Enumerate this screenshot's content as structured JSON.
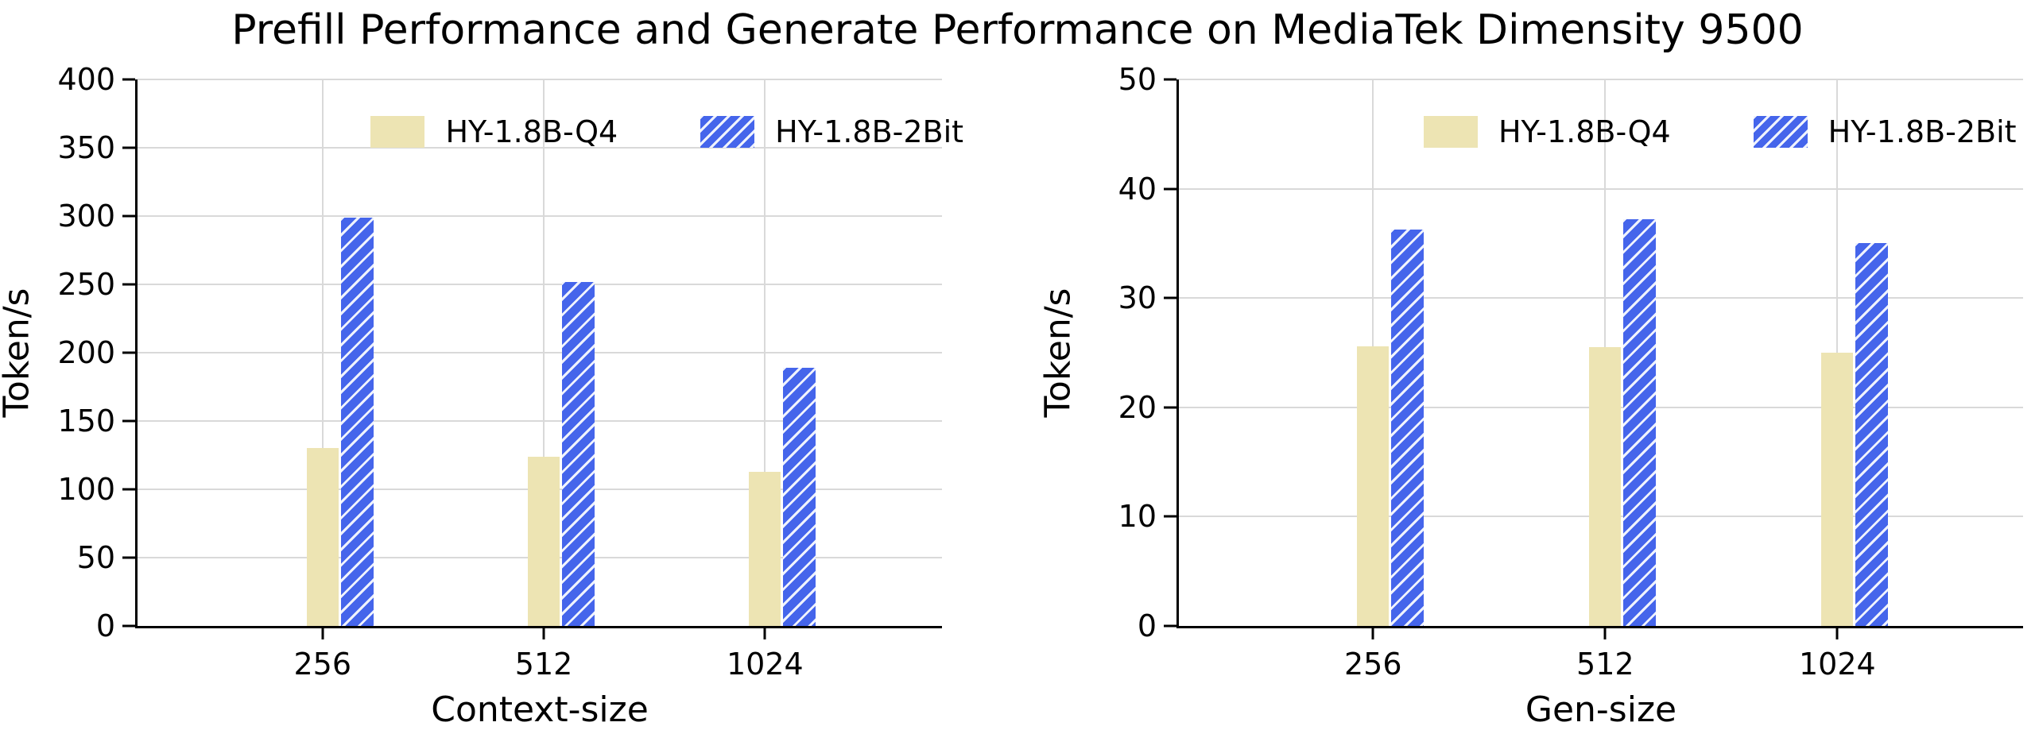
{
  "figure": {
    "title": "Prefill Performance and Generate Performance on MediaTek Dimensity 9500"
  },
  "colors": {
    "series_q4": "#ede4b3",
    "series_2bit": "#4565eb",
    "hatch": "#ffffff",
    "grid": "#d9d9d9",
    "axis": "#000000",
    "text": "#000000"
  },
  "legend": {
    "items": [
      {
        "label": "HY-1.8B-Q4"
      },
      {
        "label": "HY-1.8B-2Bit"
      }
    ]
  },
  "chart_data": [
    {
      "type": "bar",
      "name": "prefill-performance",
      "categories": [
        "256",
        "512",
        "1024"
      ],
      "series": [
        {
          "name": "HY-1.8B-Q4",
          "color": "#ede4b3",
          "hatch": false,
          "values": [
            130,
            124,
            113
          ]
        },
        {
          "name": "HY-1.8B-2Bit",
          "color": "#4565eb",
          "hatch": true,
          "values": [
            299,
            252,
            189
          ]
        }
      ],
      "xlabel": "Context-size",
      "ylabel": "Token/s",
      "ylim": [
        0,
        400
      ],
      "ytick_step": 50,
      "yticks": [
        0,
        50,
        100,
        150,
        200,
        250,
        300,
        350,
        400
      ],
      "grid": "horizontal and vertical",
      "legend_position": "upper center"
    },
    {
      "type": "bar",
      "name": "generate-performance",
      "categories": [
        "256",
        "512",
        "1024"
      ],
      "series": [
        {
          "name": "HY-1.8B-Q4",
          "color": "#ede4b3",
          "hatch": false,
          "values": [
            25.6,
            25.5,
            25.0
          ]
        },
        {
          "name": "HY-1.8B-2Bit",
          "color": "#4565eb",
          "hatch": true,
          "values": [
            36.3,
            37.2,
            35.0
          ]
        }
      ],
      "xlabel": "Gen-size",
      "ylabel": "Token/s",
      "ylim": [
        0,
        50
      ],
      "ytick_step": 10,
      "yticks": [
        0,
        10,
        20,
        30,
        40,
        50
      ],
      "grid": "horizontal and vertical",
      "legend_position": "upper center"
    }
  ]
}
